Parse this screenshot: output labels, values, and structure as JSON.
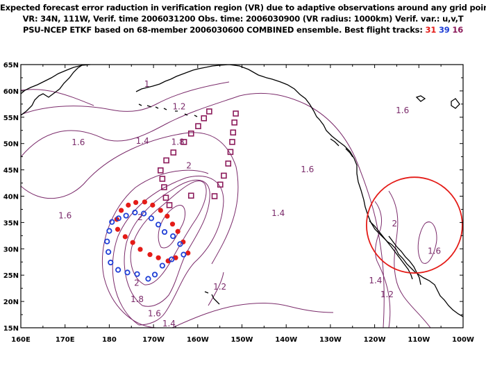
{
  "title": {
    "line1": "Expected forecast error raduction in verification region (VR) due to adaptive observations around any grid point.",
    "line2": "VR: 34N, 111W, Verif. time 2006031200   Obs. time: 2006030900 (VR radius: 1000km)    Verif. var.: u,v,T",
    "line3_prefix": "PSU-NCEP ETKF based on 68-member 2006030600 COMBINED ensemble.   Best flight tracks:",
    "track_31": "31",
    "track_39": "39",
    "track_16": "16"
  },
  "colors": {
    "contour": "#7a2a6a",
    "track_31": "#e41b17",
    "track_39": "#1f3fd6",
    "track_16": "#8b1a5a",
    "vr_circle": "#e41b17",
    "coast": "#000000"
  },
  "axes": {
    "lon_labels": [
      "160E",
      "170E",
      "180",
      "170W",
      "160W",
      "150W",
      "140W",
      "130W",
      "120W",
      "110W",
      "100W"
    ],
    "lat_labels": [
      "15N",
      "20N",
      "25N",
      "30N",
      "35N",
      "40N",
      "45N",
      "50N",
      "55N",
      "60N",
      "65N"
    ],
    "lon_range_deg": [
      160,
      260
    ],
    "lat_range": [
      15,
      65
    ]
  },
  "contour_labels": [
    {
      "text": "1",
      "lon": 188.5,
      "lat": 61.3
    },
    {
      "text": "1.2",
      "lon": 195.8,
      "lat": 57.0
    },
    {
      "text": "1.4",
      "lon": 187.5,
      "lat": 50.5
    },
    {
      "text": "1.6",
      "lon": 173.0,
      "lat": 50.2
    },
    {
      "text": "1.8",
      "lon": 195.5,
      "lat": 50.3
    },
    {
      "text": "2",
      "lon": 198.0,
      "lat": 45.8
    },
    {
      "text": "1.6",
      "lon": 170.0,
      "lat": 36.3
    },
    {
      "text": "1.6",
      "lon": 246.3,
      "lat": 56.3
    },
    {
      "text": "1.6",
      "lon": 224.8,
      "lat": 45.1
    },
    {
      "text": "1.4",
      "lon": 218.2,
      "lat": 36.8
    },
    {
      "text": "2",
      "lon": 244.5,
      "lat": 34.8
    },
    {
      "text": "1.6",
      "lon": 253.5,
      "lat": 29.6
    },
    {
      "text": "1.4",
      "lon": 240.2,
      "lat": 24.0
    },
    {
      "text": "1.2",
      "lon": 242.8,
      "lat": 21.3
    },
    {
      "text": "1.2",
      "lon": 205.0,
      "lat": 22.8
    },
    {
      "text": "2",
      "lon": 186.2,
      "lat": 23.5
    },
    {
      "text": "1.8",
      "lon": 186.3,
      "lat": 20.4
    },
    {
      "text": "1.6",
      "lon": 190.2,
      "lat": 17.7
    },
    {
      "text": "1.4",
      "lon": 193.5,
      "lat": 15.8
    },
    {
      "text": "2",
      "lon": 187.0,
      "lat": 36.0
    }
  ],
  "tracks": {
    "t31": [
      [
        181.7,
        35.6
      ],
      [
        182.7,
        37.3
      ],
      [
        184.3,
        38.3
      ],
      [
        186.0,
        38.8
      ],
      [
        188.0,
        38.9
      ],
      [
        189.8,
        38.3
      ],
      [
        191.6,
        37.3
      ],
      [
        193.1,
        36.2
      ],
      [
        194.3,
        34.7
      ],
      [
        195.5,
        33.3
      ],
      [
        196.7,
        31.3
      ],
      [
        197.8,
        29.2
      ],
      [
        195.0,
        28.3
      ],
      [
        193.3,
        27.7
      ],
      [
        191.1,
        28.3
      ],
      [
        189.2,
        28.9
      ],
      [
        187.0,
        29.9
      ],
      [
        185.3,
        31.2
      ],
      [
        183.6,
        32.3
      ],
      [
        181.9,
        33.7
      ]
    ],
    "t39": [
      [
        180.0,
        33.4
      ],
      [
        180.6,
        35.1
      ],
      [
        182.1,
        35.8
      ],
      [
        183.8,
        36.3
      ],
      [
        185.8,
        36.9
      ],
      [
        187.8,
        36.7
      ],
      [
        189.5,
        35.8
      ],
      [
        191.1,
        34.6
      ],
      [
        192.5,
        33.2
      ],
      [
        194.4,
        32.4
      ],
      [
        196.0,
        30.9
      ],
      [
        196.8,
        28.9
      ],
      [
        194.1,
        28.0
      ],
      [
        192.0,
        26.8
      ],
      [
        190.3,
        25.1
      ],
      [
        188.8,
        24.3
      ],
      [
        186.3,
        25.2
      ],
      [
        184.1,
        25.5
      ],
      [
        182.0,
        26.0
      ],
      [
        180.3,
        27.4
      ],
      [
        179.8,
        29.4
      ],
      [
        179.5,
        31.4
      ]
    ],
    "t16": [
      [
        193.6,
        38.3
      ],
      [
        192.8,
        39.7
      ],
      [
        192.4,
        41.7
      ],
      [
        192.0,
        43.3
      ],
      [
        191.6,
        44.9
      ],
      [
        192.9,
        46.8
      ],
      [
        194.5,
        48.3
      ],
      [
        196.9,
        50.3
      ],
      [
        198.5,
        51.9
      ],
      [
        200.1,
        53.3
      ],
      [
        201.4,
        54.8
      ],
      [
        202.6,
        56.1
      ],
      [
        208.6,
        55.7
      ],
      [
        208.3,
        54.0
      ],
      [
        208.0,
        52.1
      ],
      [
        207.8,
        50.3
      ],
      [
        207.4,
        48.4
      ],
      [
        206.9,
        46.2
      ],
      [
        205.9,
        43.9
      ],
      [
        205.1,
        42.2
      ],
      [
        203.8,
        40.0
      ],
      [
        198.5,
        40.1
      ]
    ]
  },
  "vr_circle": {
    "lon": 249,
    "lat": 34.5
  }
}
